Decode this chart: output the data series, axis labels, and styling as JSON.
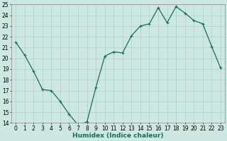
{
  "x": [
    0,
    1,
    2,
    3,
    4,
    5,
    6,
    7,
    8,
    9,
    10,
    11,
    12,
    13,
    14,
    15,
    16,
    17,
    18,
    19,
    20,
    21,
    22,
    23
  ],
  "y": [
    21.5,
    20.3,
    18.8,
    17.1,
    17.0,
    16.0,
    14.8,
    13.8,
    14.1,
    17.3,
    20.2,
    20.6,
    20.5,
    22.1,
    23.0,
    23.2,
    24.7,
    23.3,
    24.8,
    24.2,
    23.5,
    23.2,
    21.1,
    19.1
  ],
  "line_color": "#1a6b5a",
  "marker": "+",
  "marker_size": 3,
  "bg_color": "#cce8e0",
  "grid_color": "#a8ccc4",
  "xlabel": "Humidex (Indice chaleur)",
  "ylim": [
    14,
    25
  ],
  "xlim": [
    -0.5,
    23.5
  ],
  "yticks": [
    14,
    15,
    16,
    17,
    18,
    19,
    20,
    21,
    22,
    23,
    24,
    25
  ],
  "xticks": [
    0,
    1,
    2,
    3,
    4,
    5,
    6,
    7,
    8,
    9,
    10,
    11,
    12,
    13,
    14,
    15,
    16,
    17,
    18,
    19,
    20,
    21,
    22,
    23
  ],
  "tick_fontsize": 5.5,
  "xlabel_fontsize": 6.5,
  "linewidth": 0.9,
  "marker_edge_width": 0.8
}
